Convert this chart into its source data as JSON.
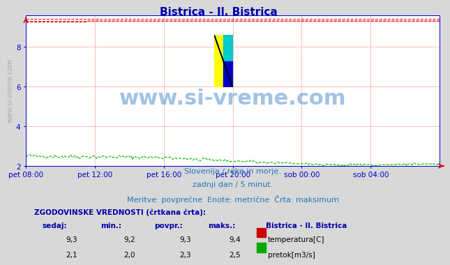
{
  "title": "Bistrica - Il. Bistrica",
  "title_color": "#0000aa",
  "title_fontsize": 11,
  "bg_color": "#d8d8d8",
  "plot_bg_color": "#ffffff",
  "grid_color": "#ff8080",
  "axis_color": "#0000cc",
  "watermark_text": "www.si-vreme.com",
  "watermark_color": "#4488cc",
  "watermark_alpha": 0.5,
  "subtitle_lines": [
    "Slovenija / reke in morje.",
    "zadnji dan / 5 minut.",
    "Meritve: povprečne  Enote: metrične  Črta: maksimum"
  ],
  "subtitle_color": "#2277bb",
  "subtitle_fontsize": 8,
  "ylabel_text": "www.si-vreme.com",
  "ylabel_color": "#aaaaaa",
  "ylabel_fontsize": 7,
  "xticklabels": [
    "pet 08:00",
    "pet 12:00",
    "pet 16:00",
    "pet 20:00",
    "sob 00:00",
    "sob 04:00"
  ],
  "xtick_positions": [
    0.0,
    0.1667,
    0.3333,
    0.5,
    0.6667,
    0.8333
  ],
  "ylim": [
    2.0,
    9.6
  ],
  "yticks": [
    2,
    4,
    6,
    8
  ],
  "temp_value": 9.3,
  "temp_min": 9.2,
  "temp_avg": 9.3,
  "temp_max": 9.4,
  "flow_value": 2.1,
  "flow_min": 2.0,
  "flow_avg": 2.3,
  "flow_max": 2.5,
  "temp_color": "#dd0000",
  "flow_color": "#00bb00",
  "blue_line_color": "#0000ff",
  "table_header_color": "#0000aa",
  "table_value_color": "#000000",
  "n_points": 288,
  "logo_colors": [
    "#ffff00",
    "#00cccc",
    "#0000cc"
  ],
  "logo_line_color": "#000000"
}
